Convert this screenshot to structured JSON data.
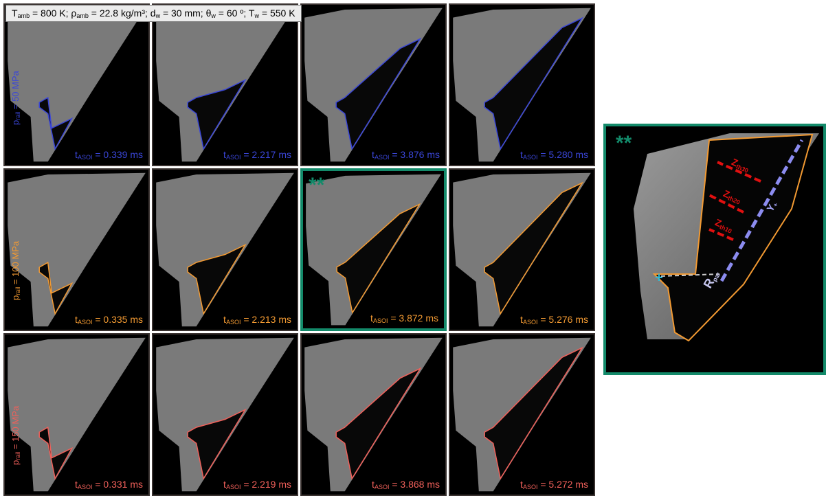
{
  "header": {
    "parts": [
      "T",
      "amb",
      " = 800 K; ρ",
      "amb",
      " = 22.8 kg/m³; d",
      "w",
      " = 30 mm; θ",
      "w",
      " = 60 º; T",
      "w",
      " = 550 K"
    ]
  },
  "time_symbol": "t",
  "time_subscript": "ASOI",
  "rows": [
    {
      "label": [
        "p",
        "rail",
        " = 50 MPa"
      ],
      "color": "#3a46d8",
      "times": [
        " = 0.339 ms",
        " = 2.217 ms",
        " = 3.876 ms",
        " = 5.280 ms"
      ]
    },
    {
      "label": [
        "p",
        "rail",
        " = 100 MPa"
      ],
      "color": "#f39a32",
      "times": [
        " = 0.335 ms",
        " = 2.213 ms",
        " = 3.872 ms",
        " = 5.276 ms"
      ]
    },
    {
      "label": [
        "p",
        "rail",
        " = 150 MPa"
      ],
      "color": "#f0605a",
      "times": [
        " = 0.331 ms",
        " = 2.219 ms",
        " = 3.868 ms",
        " = 5.272 ms"
      ]
    }
  ],
  "highlight_mark": "**",
  "zoom": {
    "mark": "**",
    "z30": [
      "Z",
      "th30"
    ],
    "z20": [
      "Z",
      "th20"
    ],
    "z10": [
      "Z",
      "th10"
    ],
    "y": [
      "Y",
      "+"
    ],
    "r": [
      "R",
      "par"
    ]
  }
}
